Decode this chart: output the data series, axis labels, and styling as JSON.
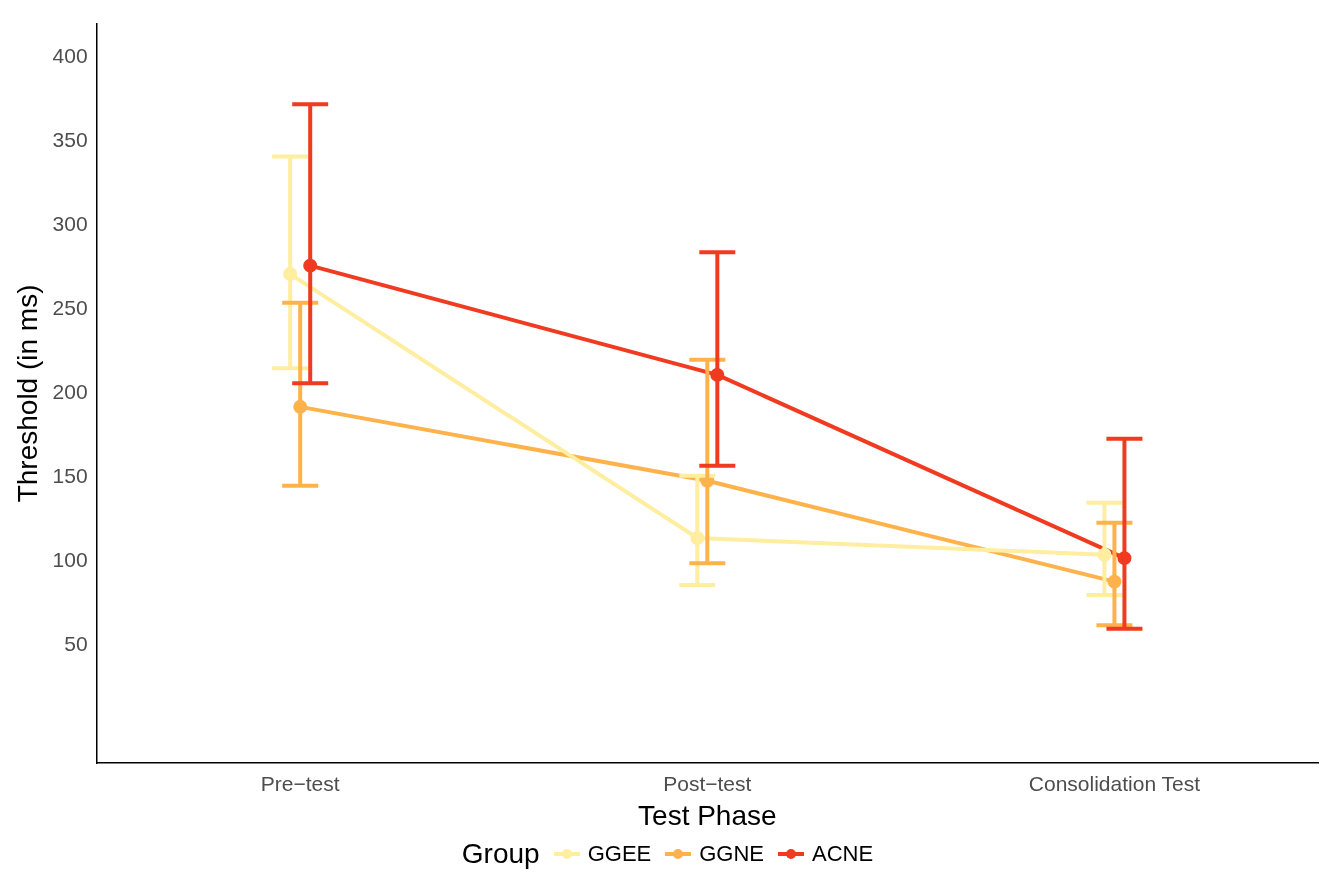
{
  "chart_data": {
    "type": "line",
    "xlabel": "Test Phase",
    "ylabel": "Threshold (in ms)",
    "legend_title": "Group",
    "legend": "bottom",
    "marker": "circle",
    "grid": false,
    "categories": [
      "Pre−test",
      "Post−test",
      "Consolidation Test"
    ],
    "ylim": [
      -20,
      420
    ],
    "yticks": [
      50,
      100,
      150,
      200,
      250,
      300,
      350,
      400
    ],
    "series": [
      {
        "name": "GGEE",
        "color": "#ffeda0",
        "values": [
          271,
          114,
          104
        ],
        "errors": [
          [
            215,
            341
          ],
          [
            86,
            151
          ],
          [
            80,
            135
          ]
        ]
      },
      {
        "name": "GGNE",
        "color": "#feb24c",
        "values": [
          192,
          148,
          88
        ],
        "errors": [
          [
            145,
            254
          ],
          [
            99,
            220
          ],
          [
            62,
            123
          ]
        ]
      },
      {
        "name": "ACNE",
        "color": "#f03b20",
        "values": [
          276,
          211,
          102
        ],
        "errors": [
          [
            206,
            372
          ],
          [
            157,
            284
          ],
          [
            60,
            173
          ]
        ]
      }
    ]
  }
}
